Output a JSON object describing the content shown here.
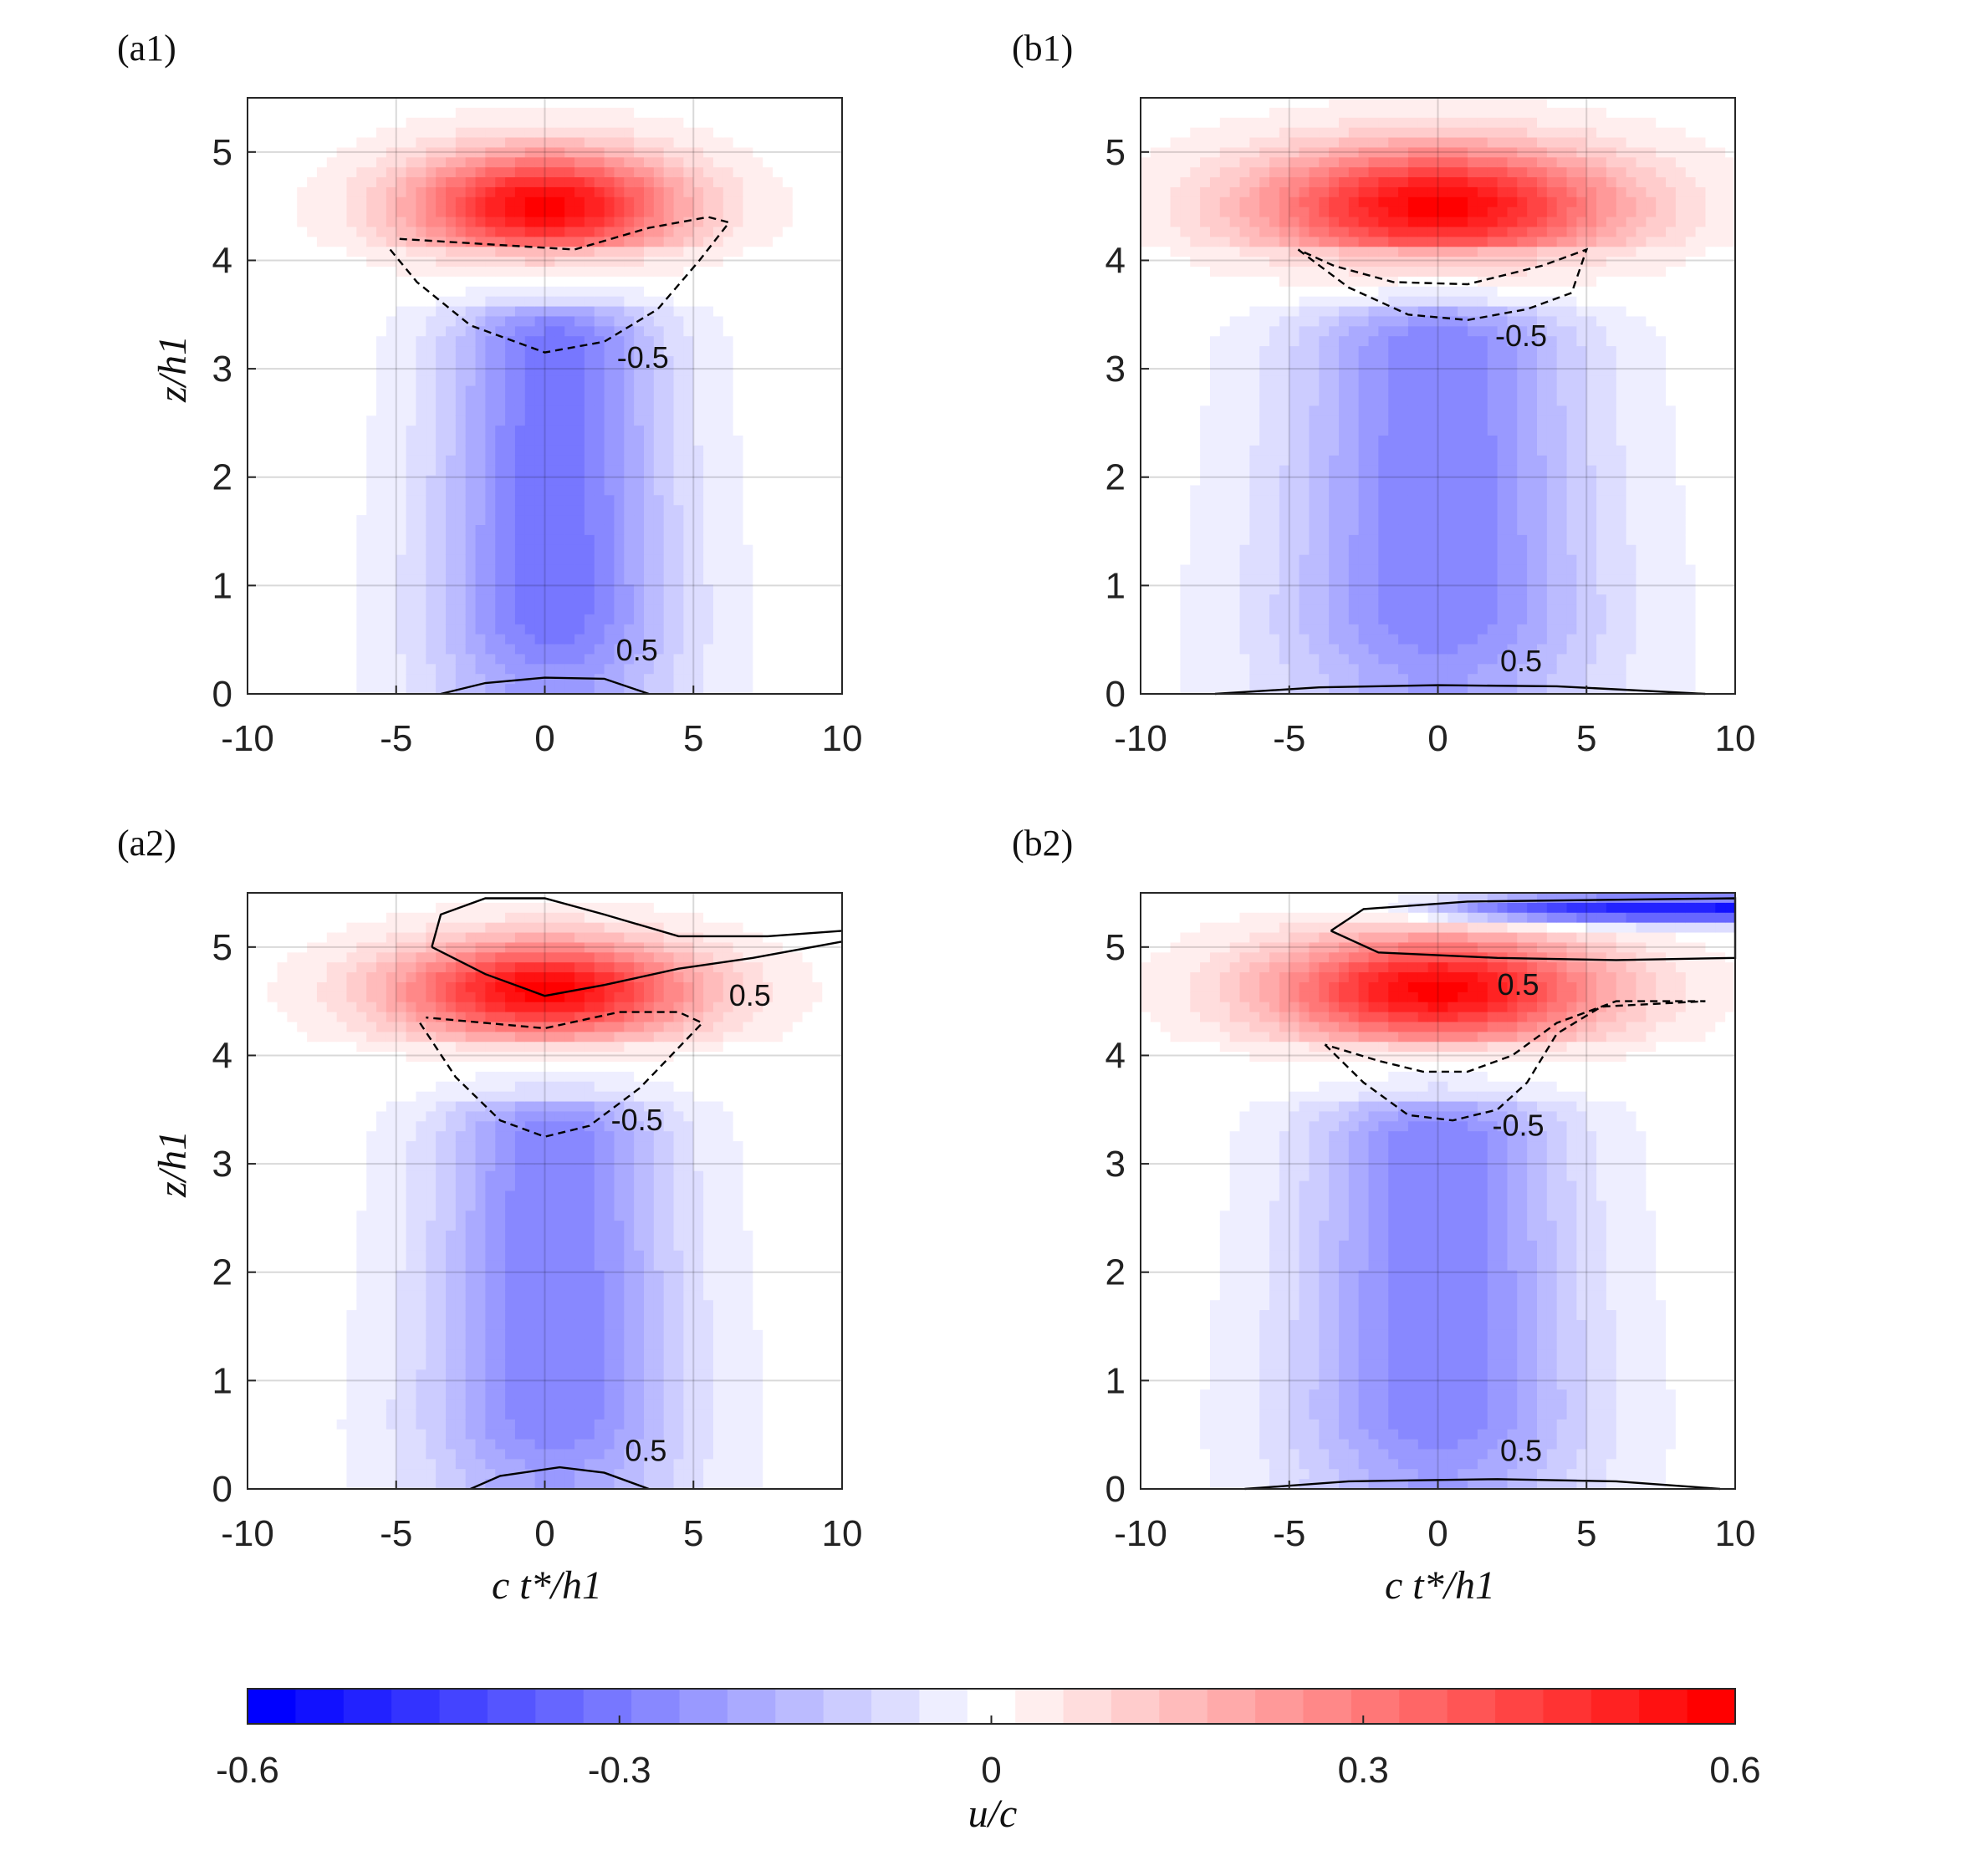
{
  "figure": {
    "colorbar": {
      "label": "u/c",
      "min": -0.6,
      "max": 0.6,
      "levels": 31,
      "tick_values": [
        -0.6,
        -0.3,
        0,
        0.3,
        0.6
      ],
      "tick_labels": [
        "-0.6",
        "-0.3",
        "0",
        "0.3",
        "0.6"
      ],
      "color_low": "#0000ff",
      "color_mid": "#ffffff",
      "color_high": "#ff0000"
    }
  },
  "chart_data": [
    {
      "type": "heatmap",
      "panel": "(a1)",
      "xlabel": "",
      "ylabel": "z/h1",
      "xlim": [
        -10,
        10
      ],
      "ylim": [
        0,
        5.5
      ],
      "x_ticks": [
        "-10",
        "-5",
        "0",
        "5",
        "10"
      ],
      "y_ticks": [
        "0",
        "1",
        "2",
        "3",
        "4",
        "5"
      ],
      "grid": true,
      "field": {
        "jet_peak": 0.6,
        "jet_z": 4.5,
        "jet_halfwidth_x": 4.5,
        "jet_thickness": 0.5,
        "lower_min": -0.33,
        "lower_center_x": 0.3,
        "lower_halfwidth_x": 4.2
      },
      "contours": [
        {
          "label": "-0.5",
          "style": "dashed",
          "label_x": 3.3,
          "label_z": 3.1,
          "points": [
            [
              -5.2,
              4.1
            ],
            [
              -4.3,
              3.8
            ],
            [
              -2.5,
              3.4
            ],
            [
              0,
              3.15
            ],
            [
              2,
              3.25
            ],
            [
              3.8,
              3.55
            ],
            [
              5.2,
              4.0
            ],
            [
              6.2,
              4.35
            ],
            [
              5.5,
              4.4
            ],
            [
              3.5,
              4.3
            ],
            [
              1,
              4.1
            ],
            [
              -2,
              4.15
            ],
            [
              -5,
              4.2
            ]
          ]
        },
        {
          "label": "0.5",
          "style": "solid",
          "label_x": 3.1,
          "label_z": 0.4,
          "points": [
            [
              -3.5,
              0
            ],
            [
              -2,
              0.1
            ],
            [
              0,
              0.15
            ],
            [
              2,
              0.14
            ],
            [
              3.5,
              0
            ]
          ]
        }
      ]
    },
    {
      "type": "heatmap",
      "panel": "(b1)",
      "xlabel": "",
      "ylabel": "",
      "xlim": [
        -10,
        10
      ],
      "ylim": [
        0,
        5.5
      ],
      "x_ticks": [
        "-10",
        "-5",
        "0",
        "5",
        "10"
      ],
      "y_ticks": [
        "0",
        "1",
        "2",
        "3",
        "4",
        "5"
      ],
      "grid": true,
      "field": {
        "jet_peak": 0.6,
        "jet_z": 4.5,
        "jet_halfwidth_x": 6.0,
        "jet_thickness": 0.55,
        "lower_min": -0.3,
        "lower_center_x": 0,
        "lower_halfwidth_x": 5.5
      },
      "contours": [
        {
          "label": "-0.5",
          "style": "dashed",
          "label_x": 2.8,
          "label_z": 3.3,
          "points": [
            [
              -4.7,
              4.1
            ],
            [
              -3,
              3.75
            ],
            [
              -1,
              3.5
            ],
            [
              1,
              3.45
            ],
            [
              3,
              3.55
            ],
            [
              4.5,
              3.7
            ],
            [
              5,
              4.1
            ],
            [
              3.5,
              3.95
            ],
            [
              1,
              3.78
            ],
            [
              -1.5,
              3.8
            ],
            [
              -3.5,
              3.95
            ],
            [
              -4.7,
              4.1
            ]
          ]
        },
        {
          "label": "0.5",
          "style": "solid",
          "label_x": 2.8,
          "label_z": 0.3,
          "points": [
            [
              -7.5,
              0
            ],
            [
              -4,
              0.06
            ],
            [
              0,
              0.08
            ],
            [
              4,
              0.07
            ],
            [
              9,
              0
            ]
          ]
        }
      ]
    },
    {
      "type": "heatmap",
      "panel": "(a2)",
      "xlabel": "c t*/h1",
      "ylabel": "z/h1",
      "xlim": [
        -10,
        10
      ],
      "ylim": [
        0,
        5.5
      ],
      "x_ticks": [
        "-10",
        "-5",
        "0",
        "5",
        "10"
      ],
      "y_ticks": [
        "0",
        "1",
        "2",
        "3",
        "4",
        "5"
      ],
      "grid": true,
      "field": {
        "jet_peak": 0.6,
        "jet_z": 4.6,
        "jet_halfwidth_x": 5.0,
        "jet_thickness": 0.45,
        "lower_min": -0.3,
        "lower_center_x": 0.3,
        "lower_halfwidth_x": 4.5
      },
      "contours": [
        {
          "label": "-0.5",
          "style": "dashed",
          "label_x": 3.1,
          "label_z": 3.4,
          "points": [
            [
              -4.2,
              4.3
            ],
            [
              -3,
              3.8
            ],
            [
              -1.5,
              3.4
            ],
            [
              0,
              3.25
            ],
            [
              1.5,
              3.35
            ],
            [
              3.2,
              3.7
            ],
            [
              5.3,
              4.3
            ],
            [
              4.5,
              4.4
            ],
            [
              2.5,
              4.4
            ],
            [
              0,
              4.25
            ],
            [
              -2,
              4.3
            ],
            [
              -4,
              4.35
            ]
          ]
        },
        {
          "label": "0.5",
          "style": "solid",
          "label_x": 6.9,
          "label_z": 4.55,
          "points": [
            [
              -3.8,
              5.0
            ],
            [
              -3.5,
              5.3
            ],
            [
              -2,
              5.45
            ],
            [
              0,
              5.45
            ],
            [
              2,
              5.3
            ],
            [
              4.5,
              5.1
            ],
            [
              7.5,
              5.1
            ],
            [
              10,
              5.15
            ]
          ]
        },
        {
          "label": "",
          "style": "solid",
          "label_x": 0,
          "label_z": 0,
          "points": [
            [
              -3.8,
              5.0
            ],
            [
              -2,
              4.75
            ],
            [
              0,
              4.55
            ],
            [
              2,
              4.65
            ],
            [
              4.5,
              4.8
            ],
            [
              7,
              4.9
            ],
            [
              10,
              5.05
            ]
          ]
        },
        {
          "label": "0.5",
          "style": "solid",
          "label_x": 3.4,
          "label_z": 0.35,
          "points": [
            [
              -2.5,
              0
            ],
            [
              -1.5,
              0.12
            ],
            [
              0.5,
              0.2
            ],
            [
              2,
              0.15
            ],
            [
              3.5,
              0
            ]
          ]
        }
      ]
    },
    {
      "type": "heatmap",
      "panel": "(b2)",
      "xlabel": "c t*/h1",
      "ylabel": "",
      "xlim": [
        -10,
        10
      ],
      "ylim": [
        0,
        5.5
      ],
      "x_ticks": [
        "-10",
        "-5",
        "0",
        "5",
        "10"
      ],
      "y_ticks": [
        "0",
        "1",
        "2",
        "3",
        "4",
        "5"
      ],
      "grid": true,
      "field": {
        "jet_peak": 0.6,
        "jet_z": 4.6,
        "jet_halfwidth_x": 5.5,
        "jet_thickness": 0.5,
        "lower_min": -0.3,
        "lower_center_x": 0,
        "lower_halfwidth_x": 5.0,
        "top_negative": true
      },
      "contours": [
        {
          "label": "-0.5",
          "style": "dashed",
          "label_x": 2.7,
          "label_z": 3.35,
          "points": [
            [
              -3.8,
              4.1
            ],
            [
              -2.5,
              3.75
            ],
            [
              -1,
              3.45
            ],
            [
              0.5,
              3.4
            ],
            [
              2,
              3.5
            ],
            [
              3,
              3.75
            ],
            [
              4,
              4.2
            ],
            [
              5.5,
              4.45
            ],
            [
              9,
              4.5
            ],
            [
              6,
              4.5
            ],
            [
              4,
              4.3
            ],
            [
              2.5,
              4.0
            ],
            [
              1,
              3.85
            ],
            [
              -0.5,
              3.85
            ],
            [
              -2,
              3.95
            ],
            [
              -3.8,
              4.1
            ]
          ]
        },
        {
          "label": "0.5",
          "style": "solid",
          "label_x": 2.7,
          "label_z": 4.65,
          "points": [
            [
              -3.6,
              5.15
            ],
            [
              -2.5,
              5.35
            ],
            [
              1,
              5.42
            ],
            [
              10,
              5.45
            ],
            [
              10,
              4.9
            ],
            [
              6,
              4.88
            ],
            [
              2,
              4.9
            ],
            [
              -2,
              4.95
            ],
            [
              -3.6,
              5.15
            ]
          ]
        },
        {
          "label": "0.5",
          "style": "solid",
          "label_x": 2.8,
          "label_z": 0.35,
          "points": [
            [
              -6.5,
              0
            ],
            [
              -3,
              0.07
            ],
            [
              2,
              0.09
            ],
            [
              6,
              0.07
            ],
            [
              9.5,
              0
            ]
          ]
        }
      ]
    }
  ]
}
